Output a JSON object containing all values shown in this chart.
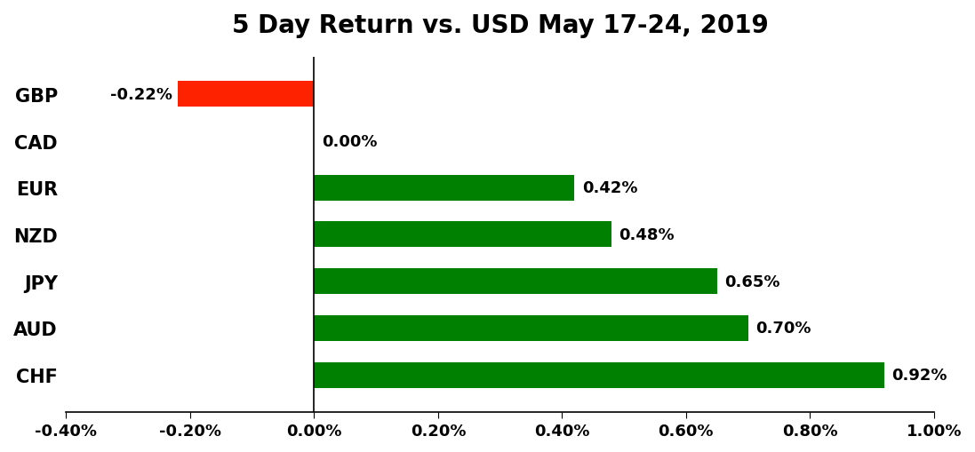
{
  "title": "5 Day Return vs. USD May 17-24, 2019",
  "categories": [
    "CHF",
    "AUD",
    "JPY",
    "NZD",
    "EUR",
    "CAD",
    "GBP"
  ],
  "values": [
    0.0092,
    0.007,
    0.0065,
    0.0048,
    0.0042,
    0.0,
    -0.0022
  ],
  "labels": [
    "0.92%",
    "0.70%",
    "0.65%",
    "0.48%",
    "0.42%",
    "0.00%",
    "-0.22%"
  ],
  "bar_colors": [
    "#008000",
    "#008000",
    "#008000",
    "#008000",
    "#008000",
    "#008000",
    "#ff2200"
  ],
  "xlim": [
    -0.004,
    0.01
  ],
  "xticks": [
    -0.004,
    -0.002,
    0.0,
    0.002,
    0.004,
    0.006,
    0.008,
    0.01
  ],
  "xtick_labels": [
    "-0.40%",
    "-0.20%",
    "0.00%",
    "0.20%",
    "0.40%",
    "0.60%",
    "0.80%",
    "1.00%"
  ],
  "title_fontsize": 20,
  "label_fontsize": 13,
  "tick_fontsize": 13,
  "ytick_fontsize": 15,
  "background_color": "#ffffff",
  "bar_height": 0.55
}
